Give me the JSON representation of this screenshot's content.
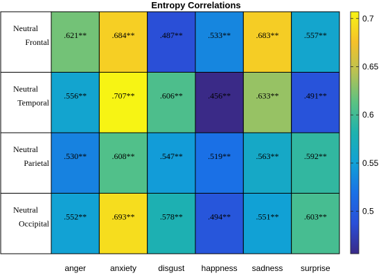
{
  "chart_data": {
    "type": "heatmap",
    "title": "Entropy Correlations",
    "columns": [
      "anger",
      "anxiety",
      "disgust",
      "happness",
      "sadness",
      "surprise"
    ],
    "rows": [
      [
        "Neutral",
        "Frontal"
      ],
      [
        "Neutral",
        "Temporal"
      ],
      [
        "Neutral",
        "Parietal"
      ],
      [
        "Neutral",
        "Occipital"
      ]
    ],
    "values": [
      [
        0.621,
        0.684,
        0.487,
        0.533,
        0.683,
        0.557
      ],
      [
        0.556,
        0.707,
        0.606,
        0.456,
        0.633,
        0.491
      ],
      [
        0.53,
        0.608,
        0.547,
        0.519,
        0.563,
        0.592
      ],
      [
        0.552,
        0.693,
        0.578,
        0.494,
        0.551,
        0.603
      ]
    ],
    "labels": [
      [
        ".621**",
        ".684**",
        ".487**",
        ".533**",
        ".683**",
        ".557**"
      ],
      [
        ".556**",
        ".707**",
        ".606**",
        ".456**",
        ".633**",
        ".491**"
      ],
      [
        ".530**",
        ".608**",
        ".547**",
        ".519**",
        ".563**",
        ".592**"
      ],
      [
        ".552**",
        ".693**",
        ".578**",
        ".494**",
        ".551**",
        ".603**"
      ]
    ],
    "colorbar": {
      "range": [
        0.456,
        0.707
      ],
      "ticks": [
        0.5,
        0.55,
        0.6,
        0.65,
        0.7
      ],
      "tick_labels": [
        "0.5",
        "0.55",
        "0.6",
        "0.65",
        "0.7"
      ],
      "colormap": "parula"
    }
  }
}
